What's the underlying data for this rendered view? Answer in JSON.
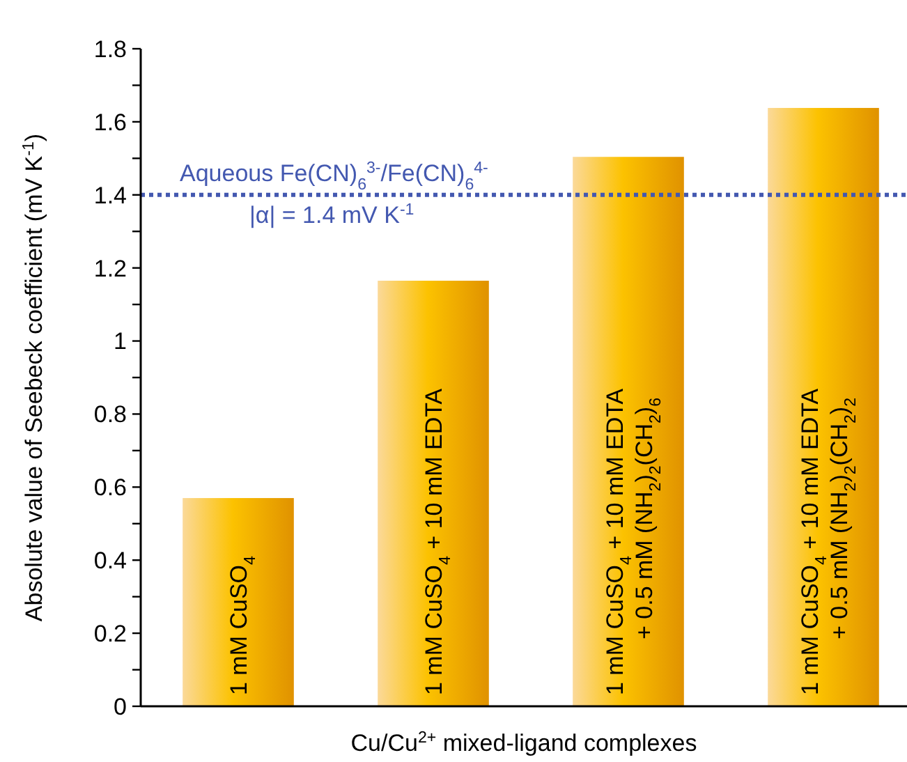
{
  "chart_data": {
    "type": "bar",
    "xlabel": "Cu/Cu$^{2+}$ mixed-ligand complexes",
    "ylabel": "Absolute value of Seebeck coefficient (mV K$^{-1}$)",
    "categories": [
      "1 mM CuSO$_{4}$",
      "1 mM CuSO$_{4}$ + 10 mM EDTA",
      "1 mM CuSO$_{4}$ + 10 mM EDTA\n+ 0.5 mM (NH$_{2}$)$_{2}$(CH$_{2}$)$_{6}$",
      "1 mM CuSO$_{4}$ + 10 mM EDTA\n+ 0.5 mM (NH$_{2}$)$_{2}$(CH$_{2}$)$_{2}$"
    ],
    "values": [
      0.57,
      1.165,
      1.504,
      1.638
    ],
    "color": "#f5a000",
    "ylim": [
      0,
      1.8
    ],
    "yticks": [
      0,
      {
        "value": 0.1,
        "label": null
      },
      0.2,
      {
        "value": 0.3,
        "label": null
      },
      0.4,
      {
        "value": 0.5,
        "label": null
      },
      0.6,
      {
        "value": 0.7,
        "label": null
      },
      0.8,
      {
        "value": 0.9,
        "label": null
      },
      1,
      {
        "value": 1.1,
        "label": null
      },
      1.2,
      {
        "value": 1.3,
        "label": null
      },
      1.4,
      {
        "value": 1.5,
        "label": null
      },
      1.6,
      {
        "value": 1.7,
        "label": null
      },
      1.8
    ],
    "ref_lines": [
      {
        "axis": "y",
        "value": 1.4,
        "label": "Aqueous Fe(CN)$_{6}$$^{3-}$/Fe(CN)$_{6}$$^{4-}$\n|α| = 1.4 mV K$^{-1}$",
        "color": "#4358b0",
        "line_style": "dotted"
      }
    ],
    "grid": false
  }
}
